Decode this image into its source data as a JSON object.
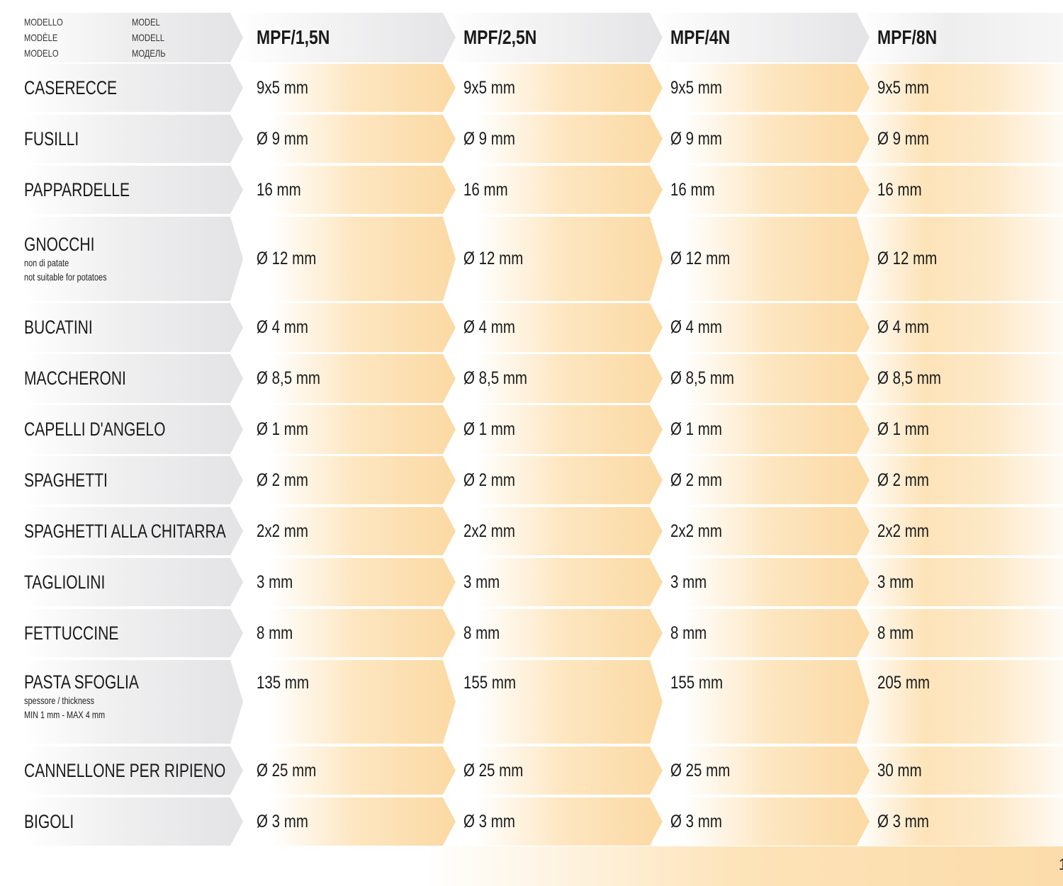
{
  "header": {
    "model_labels_left": [
      "MODELLO",
      "MODÈLE",
      "MODELO"
    ],
    "model_labels_right": [
      "MODEL",
      "MODELL",
      "МОДЕЛЬ"
    ],
    "models": [
      "MPF/1,5N",
      "MPF/2,5N",
      "MPF/4N",
      "MPF/8N"
    ]
  },
  "rows": [
    {
      "name": "CASERECCE",
      "values": [
        "9x5 mm",
        "9x5 mm",
        "9x5 mm",
        "9x5 mm"
      ]
    },
    {
      "name": "FUSILLI",
      "values": [
        "Ø 9 mm",
        "Ø 9 mm",
        "Ø 9 mm",
        "Ø 9 mm"
      ]
    },
    {
      "name": "PAPPARDELLE",
      "values": [
        "16 mm",
        "16 mm",
        "16 mm",
        "16 mm"
      ]
    },
    {
      "name": "GNOCCHI",
      "notes": [
        "non di patate",
        "not suitable for potatoes"
      ],
      "values": [
        "Ø 12 mm",
        "Ø 12 mm",
        "Ø 12 mm",
        "Ø 12 mm"
      ]
    },
    {
      "name": "BUCATINI",
      "values": [
        "Ø 4 mm",
        "Ø 4 mm",
        "Ø 4 mm",
        "Ø 4 mm"
      ]
    },
    {
      "name": "MACCHERONI",
      "values": [
        "Ø 8,5 mm",
        "Ø 8,5 mm",
        "Ø 8,5 mm",
        "Ø 8,5 mm"
      ]
    },
    {
      "name": "CAPELLI D'ANGELO",
      "values": [
        "Ø 1 mm",
        "Ø 1 mm",
        "Ø 1 mm",
        "Ø 1 mm"
      ]
    },
    {
      "name": "SPAGHETTI",
      "values": [
        "Ø 2 mm",
        "Ø 2 mm",
        "Ø 2 mm",
        "Ø 2 mm"
      ]
    },
    {
      "name": "SPAGHETTI ALLA CHITARRA",
      "values": [
        "2x2 mm",
        "2x2 mm",
        "2x2 mm",
        "2x2 mm"
      ]
    },
    {
      "name": "TAGLIOLINI",
      "values": [
        "3 mm",
        "3 mm",
        "3 mm",
        "3 mm"
      ]
    },
    {
      "name": "FETTUCCINE",
      "values": [
        "8 mm",
        "8 mm",
        "8 mm",
        "8 mm"
      ]
    },
    {
      "name": "PASTA SFOGLIA",
      "notes": [
        "spessore / thickness",
        "MIN 1 mm - MAX 4 mm"
      ],
      "values": [
        "135 mm",
        "155 mm",
        "155 mm",
        "205 mm"
      ]
    },
    {
      "name": "CANNELLONE PER RIPIENO",
      "values": [
        "Ø 25 mm",
        "Ø 25 mm",
        "Ø 25 mm",
        "30 mm"
      ]
    },
    {
      "name": "BIGOLI",
      "values": [
        "Ø 3 mm",
        "Ø 3 mm",
        "Ø 3 mm",
        "Ø 3 mm"
      ]
    }
  ],
  "page_number": "1",
  "colors": {
    "accent": "#fbd9a3",
    "label_bg": "#e3e3e5"
  }
}
